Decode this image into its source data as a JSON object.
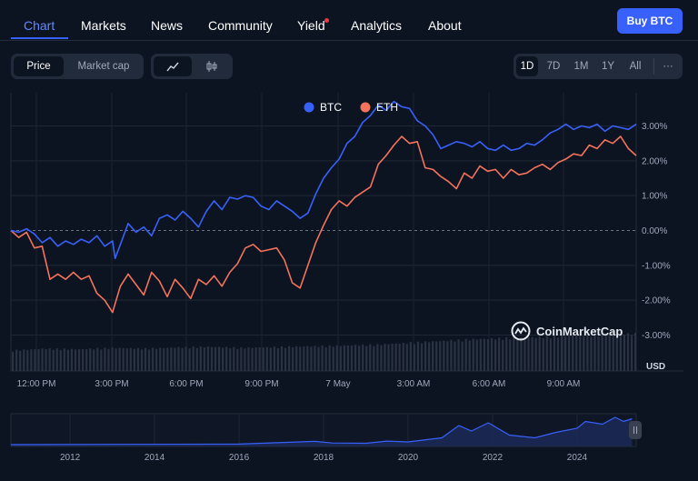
{
  "nav": {
    "tabs": [
      {
        "label": "Chart",
        "active": true
      },
      {
        "label": "Markets",
        "active": false
      },
      {
        "label": "News",
        "active": false
      },
      {
        "label": "Community",
        "active": false
      },
      {
        "label": "Yield",
        "active": false,
        "notification_dot": true
      },
      {
        "label": "Analytics",
        "active": false
      },
      {
        "label": "About",
        "active": false
      }
    ],
    "buy_label": "Buy BTC"
  },
  "toolbar": {
    "price_label": "Price",
    "marketcap_label": "Market cap",
    "line_icon": "line-chart-icon",
    "candle_icon": "candlestick-icon",
    "ranges": [
      "1D",
      "7D",
      "1M",
      "1Y",
      "All"
    ],
    "active_range": "1D",
    "more_label": "···"
  },
  "watermark": "CoinMarketCap",
  "currency_label": "USD",
  "colors": {
    "btc": "#3861fb",
    "eth": "#f4735c",
    "accent": "#3861fb",
    "background": "#0d1421"
  },
  "chart_data": {
    "type": "line",
    "x_tick_labels": [
      "12:00 PM",
      "3:00 PM",
      "6:00 PM",
      "9:00 PM",
      "7 May",
      "3:00 AM",
      "6:00 AM",
      "9:00 AM"
    ],
    "y_tick_labels": [
      "3.00%",
      "2.00%",
      "1.00%",
      "0.00%",
      "-1.00%",
      "-2.00%",
      "-3.00%"
    ],
    "ylim": [
      -3.3,
      3.9
    ],
    "xlim_hours": [
      0,
      24
    ],
    "zero_line": "dashed",
    "legend_position": "top-center",
    "series": [
      {
        "name": "BTC",
        "points": [
          [
            0,
            0
          ],
          [
            0.3,
            -0.05
          ],
          [
            0.6,
            0.05
          ],
          [
            0.9,
            -0.1
          ],
          [
            1.2,
            -0.35
          ],
          [
            1.5,
            -0.2
          ],
          [
            1.8,
            -0.45
          ],
          [
            2.1,
            -0.3
          ],
          [
            2.4,
            -0.4
          ],
          [
            2.7,
            -0.25
          ],
          [
            3.0,
            -0.35
          ],
          [
            3.3,
            -0.15
          ],
          [
            3.6,
            -0.45
          ],
          [
            3.9,
            -0.3
          ],
          [
            4.0,
            -0.8
          ],
          [
            4.3,
            -0.2
          ],
          [
            4.5,
            0.2
          ],
          [
            4.8,
            -0.05
          ],
          [
            5.1,
            0.1
          ],
          [
            5.4,
            -0.15
          ],
          [
            5.7,
            0.35
          ],
          [
            6.0,
            0.45
          ],
          [
            6.3,
            0.3
          ],
          [
            6.6,
            0.55
          ],
          [
            6.9,
            0.35
          ],
          [
            7.2,
            0.1
          ],
          [
            7.5,
            0.55
          ],
          [
            7.8,
            0.85
          ],
          [
            8.1,
            0.6
          ],
          [
            8.4,
            0.95
          ],
          [
            8.7,
            0.9
          ],
          [
            9.0,
            1.0
          ],
          [
            9.3,
            0.95
          ],
          [
            9.6,
            0.7
          ],
          [
            9.9,
            0.6
          ],
          [
            10.2,
            0.85
          ],
          [
            10.5,
            0.7
          ],
          [
            10.8,
            0.55
          ],
          [
            11.1,
            0.35
          ],
          [
            11.4,
            0.5
          ],
          [
            11.7,
            1.05
          ],
          [
            12.0,
            1.5
          ],
          [
            12.3,
            1.8
          ],
          [
            12.6,
            2.05
          ],
          [
            12.9,
            2.5
          ],
          [
            13.2,
            2.7
          ],
          [
            13.5,
            3.1
          ],
          [
            13.8,
            3.3
          ],
          [
            14.1,
            3.6
          ],
          [
            14.4,
            3.45
          ],
          [
            14.7,
            3.7
          ],
          [
            15.0,
            3.55
          ],
          [
            15.3,
            3.5
          ],
          [
            15.6,
            3.15
          ],
          [
            15.9,
            3.0
          ],
          [
            16.2,
            2.75
          ],
          [
            16.5,
            2.35
          ],
          [
            16.8,
            2.45
          ],
          [
            17.1,
            2.55
          ],
          [
            17.4,
            2.5
          ],
          [
            17.7,
            2.4
          ],
          [
            18.0,
            2.55
          ],
          [
            18.3,
            2.35
          ],
          [
            18.6,
            2.3
          ],
          [
            18.9,
            2.45
          ],
          [
            19.2,
            2.3
          ],
          [
            19.5,
            2.35
          ],
          [
            19.8,
            2.5
          ],
          [
            20.1,
            2.45
          ],
          [
            20.4,
            2.6
          ],
          [
            20.7,
            2.8
          ],
          [
            21.0,
            2.9
          ],
          [
            21.3,
            3.05
          ],
          [
            21.6,
            2.9
          ],
          [
            21.9,
            3.0
          ],
          [
            22.2,
            2.95
          ],
          [
            22.5,
            3.05
          ],
          [
            22.8,
            2.85
          ],
          [
            23.1,
            3.0
          ],
          [
            23.4,
            2.95
          ],
          [
            23.7,
            2.9
          ],
          [
            24.0,
            3.05
          ]
        ]
      },
      {
        "name": "ETH",
        "points": [
          [
            0,
            0
          ],
          [
            0.3,
            -0.2
          ],
          [
            0.6,
            -0.05
          ],
          [
            0.9,
            -0.5
          ],
          [
            1.2,
            -0.45
          ],
          [
            1.5,
            -1.4
          ],
          [
            1.8,
            -1.25
          ],
          [
            2.1,
            -1.4
          ],
          [
            2.4,
            -1.2
          ],
          [
            2.7,
            -1.4
          ],
          [
            3.0,
            -1.3
          ],
          [
            3.3,
            -1.8
          ],
          [
            3.6,
            -2.0
          ],
          [
            3.9,
            -2.35
          ],
          [
            4.2,
            -1.6
          ],
          [
            4.5,
            -1.25
          ],
          [
            4.8,
            -1.55
          ],
          [
            5.1,
            -1.85
          ],
          [
            5.4,
            -1.2
          ],
          [
            5.7,
            -1.45
          ],
          [
            6.0,
            -1.9
          ],
          [
            6.3,
            -1.4
          ],
          [
            6.6,
            -1.65
          ],
          [
            6.9,
            -1.95
          ],
          [
            7.2,
            -1.4
          ],
          [
            7.5,
            -1.55
          ],
          [
            7.8,
            -1.3
          ],
          [
            8.1,
            -1.6
          ],
          [
            8.4,
            -1.2
          ],
          [
            8.7,
            -0.95
          ],
          [
            9.0,
            -0.5
          ],
          [
            9.3,
            -0.4
          ],
          [
            9.6,
            -0.6
          ],
          [
            9.9,
            -0.55
          ],
          [
            10.2,
            -0.5
          ],
          [
            10.5,
            -0.85
          ],
          [
            10.8,
            -1.5
          ],
          [
            11.1,
            -1.65
          ],
          [
            11.4,
            -1.0
          ],
          [
            11.7,
            -0.35
          ],
          [
            12.0,
            0.15
          ],
          [
            12.3,
            0.6
          ],
          [
            12.6,
            0.85
          ],
          [
            12.9,
            0.7
          ],
          [
            13.2,
            0.95
          ],
          [
            13.5,
            1.1
          ],
          [
            13.8,
            1.25
          ],
          [
            14.1,
            1.9
          ],
          [
            14.4,
            2.15
          ],
          [
            14.7,
            2.45
          ],
          [
            15.0,
            2.7
          ],
          [
            15.3,
            2.5
          ],
          [
            15.6,
            2.55
          ],
          [
            15.9,
            1.8
          ],
          [
            16.2,
            1.75
          ],
          [
            16.5,
            1.55
          ],
          [
            16.8,
            1.4
          ],
          [
            17.1,
            1.2
          ],
          [
            17.4,
            1.65
          ],
          [
            17.7,
            1.5
          ],
          [
            18.0,
            1.85
          ],
          [
            18.3,
            1.7
          ],
          [
            18.6,
            1.75
          ],
          [
            18.9,
            1.5
          ],
          [
            19.2,
            1.75
          ],
          [
            19.5,
            1.6
          ],
          [
            19.8,
            1.65
          ],
          [
            20.1,
            1.8
          ],
          [
            20.4,
            1.9
          ],
          [
            20.7,
            1.75
          ],
          [
            21.0,
            1.95
          ],
          [
            21.3,
            2.05
          ],
          [
            21.6,
            2.2
          ],
          [
            21.9,
            2.15
          ],
          [
            22.2,
            2.45
          ],
          [
            22.5,
            2.35
          ],
          [
            22.8,
            2.6
          ],
          [
            23.1,
            2.5
          ],
          [
            23.4,
            2.7
          ],
          [
            23.7,
            2.35
          ],
          [
            24.0,
            2.15
          ]
        ]
      }
    ],
    "volume": {
      "description": "volume bars along bottom",
      "relative_levels": [
        0.55,
        0.6,
        0.58,
        0.62,
        0.6,
        0.63,
        0.65,
        0.62,
        0.64,
        0.66,
        0.68,
        0.7,
        0.75,
        0.8,
        0.85,
        0.88,
        0.9,
        0.95,
        0.97,
        1.0
      ]
    },
    "overview": {
      "x_tick_labels": [
        "2012",
        "2014",
        "2016",
        "2018",
        "2020",
        "2022",
        "2024"
      ],
      "x_ticks_years": [
        2012,
        2014,
        2016,
        2018,
        2020,
        2022,
        2024
      ],
      "xlim_years": [
        2010.6,
        2025.4
      ],
      "relative_levels": [
        [
          2010.6,
          0
        ],
        [
          2013,
          0.01
        ],
        [
          2016,
          0.02
        ],
        [
          2017.8,
          0.12
        ],
        [
          2018.2,
          0.06
        ],
        [
          2019,
          0.05
        ],
        [
          2019.5,
          0.13
        ],
        [
          2020,
          0.1
        ],
        [
          2020.8,
          0.25
        ],
        [
          2021.2,
          0.7
        ],
        [
          2021.5,
          0.5
        ],
        [
          2021.9,
          0.8
        ],
        [
          2022.4,
          0.35
        ],
        [
          2023,
          0.25
        ],
        [
          2023.5,
          0.45
        ],
        [
          2024,
          0.6
        ],
        [
          2024.2,
          0.85
        ],
        [
          2024.6,
          0.75
        ],
        [
          2024.9,
          1.0
        ],
        [
          2025.1,
          0.85
        ],
        [
          2025.3,
          0.95
        ]
      ]
    }
  }
}
